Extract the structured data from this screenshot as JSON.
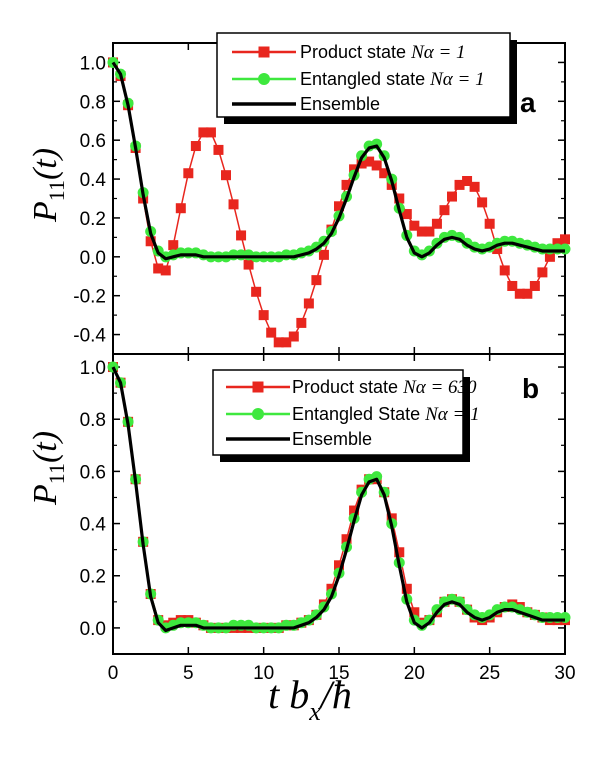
{
  "chart_data": [
    {
      "panel": "a",
      "type": "line",
      "panel_label": "a",
      "ylabel": {
        "main": "P",
        "sub": "11",
        "arg": "(t)"
      },
      "xlim": [
        0,
        30
      ],
      "ylim": [
        -0.5,
        1.1
      ],
      "yticks": [
        "-0.4",
        "-0.2",
        "0.0",
        "0.2",
        "0.4",
        "0.6",
        "0.8",
        "1.0"
      ],
      "ytick_values": [
        -0.4,
        -0.2,
        0.0,
        0.2,
        0.4,
        0.6,
        0.8,
        1.0
      ],
      "legend_position": "top-right",
      "series": [
        {
          "name": "Product state",
          "math": "Nα = 1",
          "color": "#e8261e",
          "marker": "square",
          "x": [
            0,
            0.5,
            1,
            1.5,
            2,
            2.5,
            3,
            3.5,
            4,
            4.5,
            5,
            5.5,
            6,
            6.5,
            7,
            7.5,
            8,
            8.5,
            9,
            9.5,
            10,
            10.5,
            11,
            11.5,
            12,
            12.5,
            13,
            13.5,
            14,
            14.5,
            15,
            15.5,
            16,
            16.5,
            17,
            17.5,
            18,
            18.5,
            19,
            19.5,
            20,
            20.5,
            21,
            21.5,
            22,
            22.5,
            23,
            23.5,
            24,
            24.5,
            25,
            25.5,
            26,
            26.5,
            27,
            27.5,
            28,
            28.5,
            29,
            29.5,
            30
          ],
          "y": [
            1.0,
            0.93,
            0.78,
            0.56,
            0.3,
            0.08,
            -0.06,
            -0.07,
            0.06,
            0.25,
            0.43,
            0.57,
            0.64,
            0.64,
            0.55,
            0.42,
            0.27,
            0.11,
            -0.04,
            -0.18,
            -0.3,
            -0.39,
            -0.44,
            -0.44,
            -0.41,
            -0.34,
            -0.24,
            -0.12,
            0.01,
            0.14,
            0.26,
            0.37,
            0.45,
            0.48,
            0.49,
            0.47,
            0.43,
            0.37,
            0.3,
            0.22,
            0.16,
            0.13,
            0.13,
            0.17,
            0.24,
            0.31,
            0.37,
            0.39,
            0.36,
            0.28,
            0.17,
            0.04,
            -0.07,
            -0.15,
            -0.19,
            -0.19,
            -0.15,
            -0.08,
            0.0,
            0.07,
            0.09
          ]
        },
        {
          "name": "Entangled state",
          "math": "Nα = 1",
          "color": "#3ee83e",
          "marker": "circle",
          "x": [
            0,
            0.5,
            1,
            1.5,
            2,
            2.5,
            3,
            3.5,
            4,
            4.5,
            5,
            5.5,
            6,
            6.5,
            7,
            7.5,
            8,
            8.5,
            9,
            9.5,
            10,
            10.5,
            11,
            11.5,
            12,
            12.5,
            13,
            13.5,
            14,
            14.5,
            15,
            15.5,
            16,
            16.5,
            17,
            17.5,
            18,
            18.5,
            19,
            19.5,
            20,
            20.5,
            21,
            21.5,
            22,
            22.5,
            23,
            23.5,
            24,
            24.5,
            25,
            25.5,
            26,
            26.5,
            27,
            27.5,
            28,
            28.5,
            29,
            29.5,
            30
          ],
          "y": [
            1.0,
            0.94,
            0.79,
            0.57,
            0.33,
            0.13,
            0.03,
            0.0,
            0.01,
            0.02,
            0.02,
            0.02,
            0.01,
            0.0,
            0.0,
            0.0,
            0.01,
            0.01,
            0.01,
            0.0,
            0.0,
            0.0,
            0.0,
            0.01,
            0.01,
            0.02,
            0.03,
            0.05,
            0.08,
            0.13,
            0.21,
            0.31,
            0.42,
            0.52,
            0.57,
            0.58,
            0.52,
            0.4,
            0.25,
            0.11,
            0.03,
            0.01,
            0.03,
            0.07,
            0.1,
            0.11,
            0.1,
            0.07,
            0.05,
            0.04,
            0.05,
            0.07,
            0.08,
            0.08,
            0.07,
            0.06,
            0.05,
            0.04,
            0.04,
            0.04,
            0.04
          ]
        },
        {
          "name": "Ensemble",
          "math": "",
          "color": "#000000",
          "marker": "none",
          "x": [
            0,
            0.5,
            1,
            1.5,
            2,
            2.5,
            3,
            3.5,
            4,
            4.5,
            5,
            5.5,
            6,
            6.5,
            7,
            7.5,
            8,
            8.5,
            9,
            9.5,
            10,
            10.5,
            11,
            11.5,
            12,
            12.5,
            13,
            13.5,
            14,
            14.5,
            15,
            15.5,
            16,
            16.5,
            17,
            17.5,
            18,
            18.5,
            19,
            19.5,
            20,
            20.5,
            21,
            21.5,
            22,
            22.5,
            23,
            23.5,
            24,
            24.5,
            25,
            25.5,
            26,
            26.5,
            27,
            27.5,
            28,
            28.5,
            29,
            29.5,
            30
          ],
          "y": [
            1.0,
            0.94,
            0.78,
            0.56,
            0.32,
            0.12,
            0.02,
            -0.01,
            0.0,
            0.01,
            0.01,
            0.01,
            0.0,
            0.0,
            0.0,
            0.0,
            0.0,
            0.0,
            0.0,
            0.0,
            0.0,
            0.0,
            0.0,
            0.0,
            0.0,
            0.01,
            0.02,
            0.04,
            0.07,
            0.12,
            0.2,
            0.3,
            0.41,
            0.51,
            0.56,
            0.57,
            0.51,
            0.39,
            0.24,
            0.1,
            0.02,
            0.0,
            0.02,
            0.06,
            0.09,
            0.1,
            0.09,
            0.06,
            0.04,
            0.03,
            0.04,
            0.06,
            0.07,
            0.07,
            0.06,
            0.05,
            0.04,
            0.03,
            0.03,
            0.03,
            0.03
          ]
        }
      ]
    },
    {
      "panel": "b",
      "type": "line",
      "panel_label": "b",
      "ylabel": {
        "main": "P",
        "sub": "11",
        "arg": "(t)"
      },
      "xlabel": {
        "main": "t b",
        "sub": "x",
        "tail": "/ħ"
      },
      "xlim": [
        0,
        30
      ],
      "ylim": [
        -0.1,
        1.05
      ],
      "xticks": [
        "0",
        "5",
        "10",
        "15",
        "20",
        "25",
        "30"
      ],
      "xtick_values": [
        0,
        5,
        10,
        15,
        20,
        25,
        30
      ],
      "yticks": [
        "0.0",
        "0.2",
        "0.4",
        "0.6",
        "0.8",
        "1.0"
      ],
      "ytick_values": [
        0.0,
        0.2,
        0.4,
        0.6,
        0.8,
        1.0
      ],
      "legend_position": "top-center",
      "series": [
        {
          "name": "Product state",
          "math": "Nα = 630",
          "color": "#e8261e",
          "marker": "square",
          "x": [
            0,
            0.5,
            1,
            1.5,
            2,
            2.5,
            3,
            3.5,
            4,
            4.5,
            5,
            5.5,
            6,
            6.5,
            7,
            7.5,
            8,
            8.5,
            9,
            9.5,
            10,
            10.5,
            11,
            11.5,
            12,
            12.5,
            13,
            13.5,
            14,
            14.5,
            15,
            15.5,
            16,
            16.5,
            17,
            17.5,
            18,
            18.5,
            19,
            19.5,
            20,
            20.5,
            21,
            21.5,
            22,
            22.5,
            23,
            23.5,
            24,
            24.5,
            25,
            25.5,
            26,
            26.5,
            27,
            27.5,
            28,
            28.5,
            29,
            29.5,
            30
          ],
          "y": [
            1.0,
            0.94,
            0.79,
            0.57,
            0.33,
            0.13,
            0.03,
            0.01,
            0.02,
            0.03,
            0.03,
            0.02,
            0.01,
            0.0,
            0.0,
            0.0,
            0.0,
            0.0,
            0.0,
            0.0,
            0.0,
            0.0,
            0.0,
            0.01,
            0.01,
            0.02,
            0.03,
            0.05,
            0.09,
            0.15,
            0.24,
            0.34,
            0.45,
            0.53,
            0.57,
            0.57,
            0.52,
            0.42,
            0.29,
            0.15,
            0.06,
            0.02,
            0.03,
            0.06,
            0.1,
            0.11,
            0.1,
            0.07,
            0.04,
            0.03,
            0.04,
            0.06,
            0.08,
            0.09,
            0.08,
            0.06,
            0.05,
            0.04,
            0.03,
            0.03,
            0.03
          ]
        },
        {
          "name": "Entangled State",
          "math": "Nα = 1",
          "color": "#3ee83e",
          "marker": "circle",
          "x": [
            0,
            0.5,
            1,
            1.5,
            2,
            2.5,
            3,
            3.5,
            4,
            4.5,
            5,
            5.5,
            6,
            6.5,
            7,
            7.5,
            8,
            8.5,
            9,
            9.5,
            10,
            10.5,
            11,
            11.5,
            12,
            12.5,
            13,
            13.5,
            14,
            14.5,
            15,
            15.5,
            16,
            16.5,
            17,
            17.5,
            18,
            18.5,
            19,
            19.5,
            20,
            20.5,
            21,
            21.5,
            22,
            22.5,
            23,
            23.5,
            24,
            24.5,
            25,
            25.5,
            26,
            26.5,
            27,
            27.5,
            28,
            28.5,
            29,
            29.5,
            30
          ],
          "y": [
            1.0,
            0.94,
            0.79,
            0.57,
            0.33,
            0.13,
            0.03,
            0.0,
            0.01,
            0.02,
            0.02,
            0.02,
            0.01,
            0.0,
            0.0,
            0.0,
            0.01,
            0.01,
            0.01,
            0.0,
            0.0,
            0.0,
            0.0,
            0.01,
            0.01,
            0.02,
            0.03,
            0.05,
            0.08,
            0.13,
            0.21,
            0.31,
            0.42,
            0.52,
            0.57,
            0.58,
            0.52,
            0.4,
            0.25,
            0.11,
            0.03,
            0.01,
            0.03,
            0.07,
            0.1,
            0.11,
            0.1,
            0.07,
            0.05,
            0.04,
            0.05,
            0.07,
            0.08,
            0.08,
            0.07,
            0.06,
            0.05,
            0.04,
            0.04,
            0.04,
            0.04
          ]
        },
        {
          "name": "Ensemble",
          "math": "",
          "color": "#000000",
          "marker": "none",
          "x": [
            0,
            0.5,
            1,
            1.5,
            2,
            2.5,
            3,
            3.5,
            4,
            4.5,
            5,
            5.5,
            6,
            6.5,
            7,
            7.5,
            8,
            8.5,
            9,
            9.5,
            10,
            10.5,
            11,
            11.5,
            12,
            12.5,
            13,
            13.5,
            14,
            14.5,
            15,
            15.5,
            16,
            16.5,
            17,
            17.5,
            18,
            18.5,
            19,
            19.5,
            20,
            20.5,
            21,
            21.5,
            22,
            22.5,
            23,
            23.5,
            24,
            24.5,
            25,
            25.5,
            26,
            26.5,
            27,
            27.5,
            28,
            28.5,
            29,
            29.5,
            30
          ],
          "y": [
            1.0,
            0.94,
            0.78,
            0.56,
            0.32,
            0.12,
            0.02,
            -0.01,
            0.0,
            0.01,
            0.01,
            0.01,
            0.0,
            0.0,
            0.0,
            0.0,
            0.0,
            0.0,
            0.0,
            0.0,
            0.0,
            0.0,
            0.0,
            0.0,
            0.0,
            0.01,
            0.02,
            0.04,
            0.07,
            0.12,
            0.2,
            0.3,
            0.41,
            0.51,
            0.56,
            0.57,
            0.51,
            0.39,
            0.24,
            0.1,
            0.02,
            0.0,
            0.02,
            0.06,
            0.09,
            0.1,
            0.09,
            0.06,
            0.04,
            0.03,
            0.04,
            0.06,
            0.07,
            0.07,
            0.06,
            0.05,
            0.04,
            0.03,
            0.03,
            0.03,
            0.03
          ]
        }
      ]
    }
  ]
}
